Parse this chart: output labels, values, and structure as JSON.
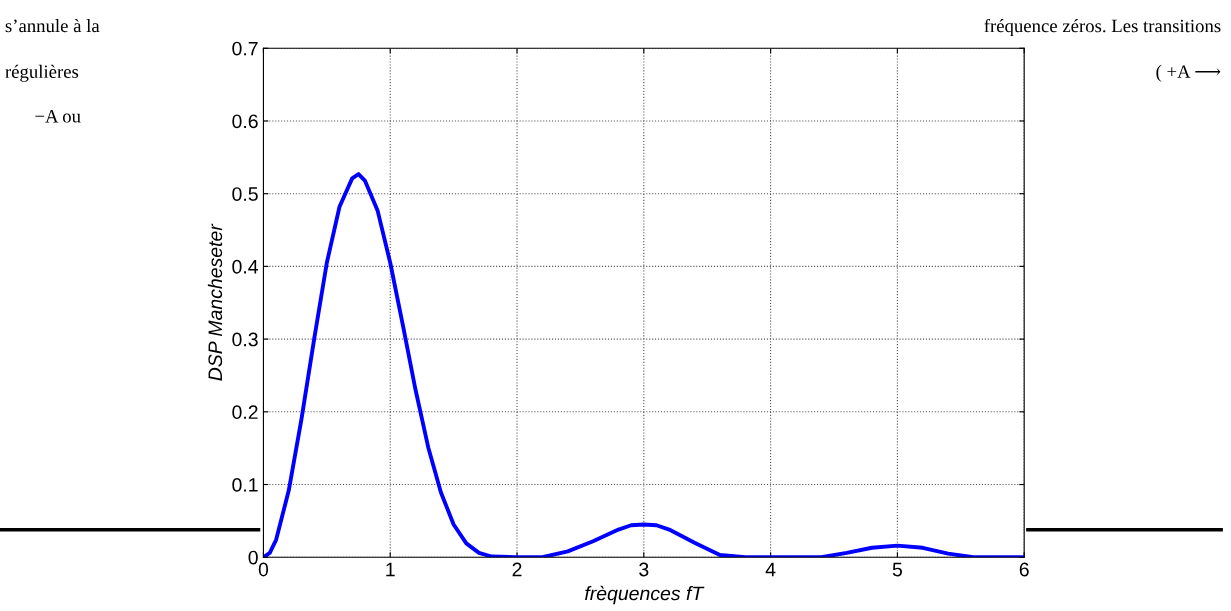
{
  "chart_data": {
    "type": "line",
    "xlabel": "frèquences fT",
    "ylabel": "DSP Mancheseter",
    "x": [
      0,
      0.05,
      0.1,
      0.2,
      0.3,
      0.4,
      0.5,
      0.6,
      0.7,
      0.75,
      0.8,
      0.9,
      1.0,
      1.1,
      1.2,
      1.3,
      1.4,
      1.5,
      1.6,
      1.7,
      1.8,
      2.0,
      2.2,
      2.4,
      2.6,
      2.8,
      2.9,
      3.0,
      3.1,
      3.2,
      3.4,
      3.6,
      3.8,
      4.0,
      4.2,
      4.4,
      4.6,
      4.8,
      5.0,
      5.2,
      5.4,
      5.6,
      5.8,
      6.0
    ],
    "series": [
      {
        "color": "#0000ff",
        "values": [
          0,
          0.006,
          0.024,
          0.092,
          0.19,
          0.3,
          0.405,
          0.482,
          0.521,
          0.527,
          0.518,
          0.477,
          0.405,
          0.319,
          0.23,
          0.151,
          0.089,
          0.045,
          0.019,
          0.006,
          0.001,
          0,
          0,
          0.008,
          0.022,
          0.038,
          0.044,
          0.045,
          0.044,
          0.038,
          0.02,
          0.003,
          0,
          0,
          0,
          0,
          0.006,
          0.013,
          0.016,
          0.013,
          0.005,
          0,
          0,
          0
        ]
      }
    ],
    "xlim": [
      0,
      6
    ],
    "ylim": [
      0,
      0.7
    ],
    "xticks": [
      0,
      1,
      2,
      3,
      4,
      5,
      6
    ],
    "yticks": [
      0,
      0.1,
      0.2,
      0.3,
      0.4,
      0.5,
      0.6,
      0.7
    ],
    "grid": true,
    "marker": "none",
    "line_style": "solid",
    "annotations": [
      "s’annule à la",
      "fréquence zéros. Les transitions",
      "régulières",
      "( +A ⟶",
      "−A ou"
    ]
  }
}
